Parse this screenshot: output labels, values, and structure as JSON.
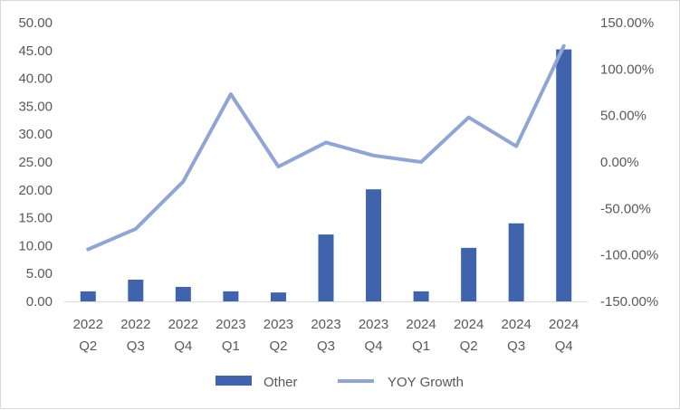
{
  "chart_data": {
    "type": "bar",
    "categories": [
      [
        "2022",
        "Q2"
      ],
      [
        "2022",
        "Q3"
      ],
      [
        "2022",
        "Q4"
      ],
      [
        "2023",
        "Q1"
      ],
      [
        "2023",
        "Q2"
      ],
      [
        "2023",
        "Q3"
      ],
      [
        "2023",
        "Q4"
      ],
      [
        "2024",
        "Q1"
      ],
      [
        "2024",
        "Q2"
      ],
      [
        "2024",
        "Q3"
      ],
      [
        "2024",
        "Q4"
      ]
    ],
    "series": [
      {
        "name": "Other",
        "type": "bar",
        "axis": "left",
        "color": "#4063ae",
        "values": [
          1.8,
          3.9,
          2.6,
          1.8,
          1.6,
          12.0,
          20.1,
          1.8,
          9.6,
          14.0,
          45.2
        ]
      },
      {
        "name": "YOY Growth",
        "type": "line",
        "axis": "right",
        "color": "#8ea5d6",
        "values": [
          -94,
          -72,
          -21,
          73,
          -5,
          21,
          7,
          0,
          48,
          17,
          125
        ]
      }
    ],
    "y_left": {
      "ylim": [
        0,
        50
      ],
      "ticks": [
        "0.00",
        "5.00",
        "10.00",
        "15.00",
        "20.00",
        "25.00",
        "30.00",
        "35.00",
        "40.00",
        "45.00",
        "50.00"
      ]
    },
    "y_right": {
      "ylim": [
        -150,
        150
      ],
      "ticks": [
        "-150.00%",
        "-100.00%",
        "-50.00%",
        "0.00%",
        "50.00%",
        "100.00%",
        "150.00%"
      ]
    },
    "grid": false,
    "legend": "bottom"
  }
}
